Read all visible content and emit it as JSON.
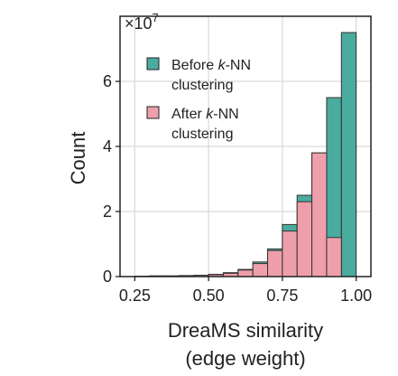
{
  "chart_data": {
    "type": "bar",
    "xlabel": "DreaMS similarity",
    "xlabel_sub": "(edge weight)",
    "ylabel": "Count",
    "y_scale_label": "×10",
    "y_scale_exponent": "7",
    "xlim": [
      0.2,
      1.05
    ],
    "ylim": [
      0,
      8
    ],
    "xticks": [
      0.25,
      0.5,
      0.75,
      1.0
    ],
    "xtick_labels": [
      "0.25",
      "0.50",
      "0.75",
      "1.00"
    ],
    "yticks": [
      0,
      2,
      4,
      6
    ],
    "ytick_labels": [
      "0",
      "2",
      "4",
      "6"
    ],
    "grid": true,
    "legend_position": "top-left",
    "bin_edges": [
      0.25,
      0.3,
      0.35,
      0.4,
      0.45,
      0.5,
      0.55,
      0.6,
      0.65,
      0.7,
      0.75,
      0.8,
      0.85,
      0.9,
      0.95,
      1.0
    ],
    "series": [
      {
        "name_pre": "Before ",
        "name_italic": "k",
        "name_post": "-NN",
        "name_line2": "clustering",
        "color": "#4aab9f",
        "values": [
          0.01,
          0.02,
          0.02,
          0.03,
          0.04,
          0.07,
          0.12,
          0.22,
          0.45,
          0.85,
          1.6,
          2.5,
          3.8,
          5.5,
          7.5
        ]
      },
      {
        "name_pre": "After ",
        "name_italic": "k",
        "name_post": "-NN",
        "name_line2": "clustering",
        "color": "#ee9fab",
        "values": [
          0.01,
          0.02,
          0.02,
          0.03,
          0.04,
          0.06,
          0.1,
          0.2,
          0.4,
          0.8,
          1.4,
          2.3,
          3.8,
          1.2,
          0
        ]
      }
    ]
  }
}
